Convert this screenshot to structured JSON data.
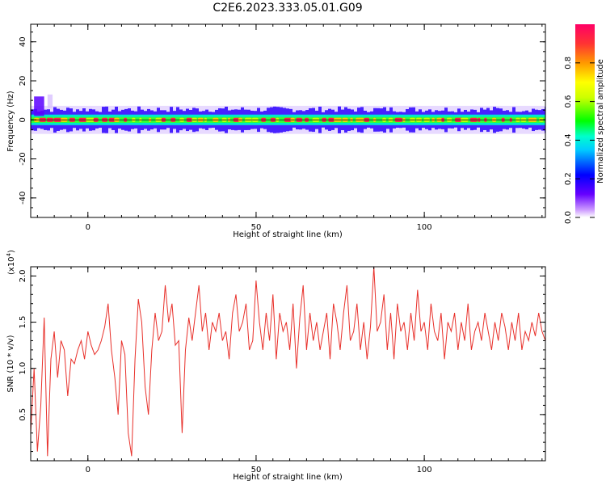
{
  "title": "C2E6.2023.333.05.01.G09",
  "colors": {
    "snr_line": "#e8302a",
    "axis": "#000000",
    "background": "#ffffff",
    "colorbar_stops": [
      "#ffffff",
      "#cc99ff",
      "#6600ff",
      "#0000ff",
      "#00ccff",
      "#00ffcc",
      "#00ff00",
      "#ccff00",
      "#ffff00",
      "#ff9900",
      "#ff3333",
      "#ff0066"
    ]
  },
  "chart_data": [
    {
      "type": "heatmap",
      "xlabel": "Height of straight line (km)",
      "ylabel": "Frequency (Hz)",
      "xlim": [
        -17,
        136
      ],
      "ylim": [
        -50,
        49
      ],
      "x_ticks": [
        0,
        50,
        100
      ],
      "y_ticks": [
        -40,
        -20,
        0,
        20,
        40
      ],
      "band_center_hz": 0,
      "band_halfwidth_hz": 3,
      "note_feature": "narrow band of high amplitude around 0 Hz across all heights; weak purple burst near -15 km up to ~12 Hz",
      "colorbar": {
        "label": "Normalized spectral amplitude",
        "range": [
          0,
          1
        ],
        "ticks": [
          "0.0",
          "0.2",
          "0.4",
          "0.6",
          "0.8"
        ]
      }
    },
    {
      "type": "line",
      "xlabel": "Height of straight line (km)",
      "ylabel": "SNR (10 * v/v)",
      "y_multiplier_label": "(x10",
      "y_multiplier_exp": "4",
      "y_multiplier_close": ")",
      "xlim": [
        -17,
        136
      ],
      "ylim": [
        0.0,
        2.1
      ],
      "x_ticks": [
        0,
        50,
        100
      ],
      "y_ticks": [
        "0.5",
        "1.0",
        "1.5",
        "2.0"
      ],
      "series": [
        {
          "x": [
            -17,
            -16,
            -15,
            -14,
            -13,
            -12,
            -11,
            -10,
            -9,
            -8,
            -7,
            -6,
            -5,
            -4,
            -3,
            -2,
            -1,
            0,
            1,
            2,
            3,
            4,
            5,
            6,
            7,
            8,
            9,
            10,
            11,
            12,
            13,
            14,
            15,
            16,
            17,
            18,
            19,
            20,
            21,
            22,
            23,
            24,
            25,
            26,
            27,
            28,
            29,
            30,
            31,
            32,
            33,
            34,
            35,
            36,
            37,
            38,
            39,
            40,
            41,
            42,
            43,
            44,
            45,
            46,
            47,
            48,
            49,
            50,
            51,
            52,
            53,
            54,
            55,
            56,
            57,
            58,
            59,
            60,
            61,
            62,
            63,
            64,
            65,
            66,
            67,
            68,
            69,
            70,
            71,
            72,
            73,
            74,
            75,
            76,
            77,
            78,
            79,
            80,
            81,
            82,
            83,
            84,
            85,
            86,
            87,
            88,
            89,
            90,
            91,
            92,
            93,
            94,
            95,
            96,
            97,
            98,
            99,
            100,
            101,
            102,
            103,
            104,
            105,
            106,
            107,
            108,
            109,
            110,
            111,
            112,
            113,
            114,
            115,
            116,
            117,
            118,
            119,
            120,
            121,
            122,
            123,
            124,
            125,
            126,
            127,
            128,
            129,
            130,
            131,
            132,
            133,
            134,
            135,
            136
          ],
          "y": [
            0.3,
            1.0,
            0.1,
            0.6,
            1.55,
            0.05,
            1.1,
            1.4,
            0.9,
            1.3,
            1.2,
            0.7,
            1.1,
            1.05,
            1.2,
            1.3,
            1.1,
            1.4,
            1.25,
            1.15,
            1.2,
            1.3,
            1.45,
            1.7,
            1.2,
            0.9,
            0.5,
            1.3,
            1.15,
            0.3,
            0.05,
            1.1,
            1.75,
            1.5,
            0.8,
            0.5,
            1.2,
            1.6,
            1.3,
            1.4,
            1.9,
            1.5,
            1.7,
            1.25,
            1.3,
            0.3,
            1.2,
            1.55,
            1.3,
            1.6,
            1.9,
            1.4,
            1.6,
            1.2,
            1.5,
            1.4,
            1.6,
            1.3,
            1.4,
            1.1,
            1.6,
            1.8,
            1.4,
            1.5,
            1.7,
            1.2,
            1.3,
            1.95,
            1.5,
            1.2,
            1.6,
            1.3,
            1.8,
            1.1,
            1.6,
            1.4,
            1.5,
            1.2,
            1.7,
            1.0,
            1.55,
            1.9,
            1.2,
            1.6,
            1.3,
            1.5,
            1.2,
            1.4,
            1.6,
            1.1,
            1.7,
            1.5,
            1.2,
            1.6,
            1.9,
            1.3,
            1.4,
            1.7,
            1.2,
            1.5,
            1.1,
            1.45,
            2.1,
            1.4,
            1.5,
            1.8,
            1.2,
            1.6,
            1.1,
            1.7,
            1.4,
            1.5,
            1.2,
            1.6,
            1.3,
            1.85,
            1.4,
            1.5,
            1.2,
            1.7,
            1.4,
            1.3,
            1.6,
            1.1,
            1.5,
            1.4,
            1.6,
            1.2,
            1.5,
            1.3,
            1.7,
            1.2,
            1.4,
            1.5,
            1.3,
            1.6,
            1.4,
            1.2,
            1.5,
            1.3,
            1.6,
            1.45,
            1.2,
            1.5,
            1.3,
            1.6,
            1.2,
            1.4,
            1.3,
            1.5,
            1.35,
            1.6,
            1.4,
            1.3
          ]
        }
      ]
    }
  ]
}
